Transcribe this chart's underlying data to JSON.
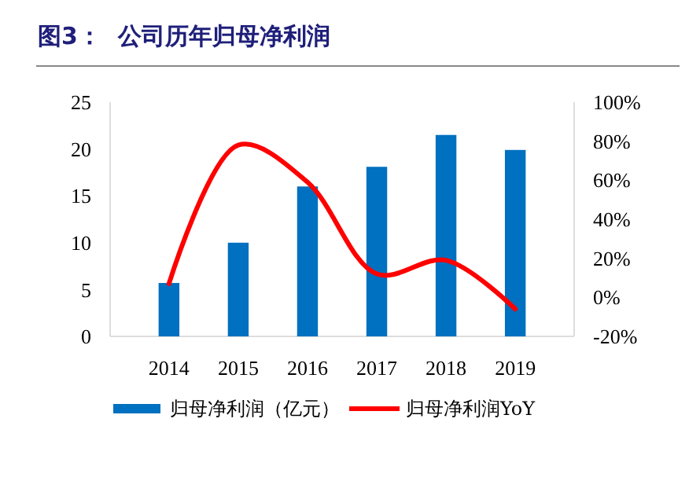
{
  "chart_data": {
    "type": "bar",
    "title": "图3：  公司历年归母净利润",
    "categories": [
      "2014",
      "2015",
      "2016",
      "2017",
      "2018",
      "2019"
    ],
    "series": [
      {
        "name": "归母净利润（亿元）",
        "color": "#0070c0",
        "values": [
          5.7,
          10.0,
          16.0,
          18.1,
          21.5,
          19.9
        ]
      },
      {
        "name": "归母净利润YoY",
        "type": "line",
        "axis": "y2",
        "color": "#ff0000",
        "values": [
          7,
          78,
          59,
          12,
          19,
          -6
        ]
      }
    ],
    "ylim": [
      0,
      25
    ],
    "yticks": [
      0,
      5,
      10,
      15,
      20,
      25
    ],
    "y2lim": [
      -20,
      100
    ],
    "y2ticks": [
      {
        "value": -20,
        "label": "-20%"
      },
      {
        "value": 0,
        "label": "0%"
      },
      {
        "value": 20,
        "label": "20%"
      },
      {
        "value": 40,
        "label": "40%"
      },
      {
        "value": 60,
        "label": "60%"
      },
      {
        "value": 80,
        "label": "80%"
      },
      {
        "value": 100,
        "label": "100%"
      }
    ],
    "legend": "bottom",
    "grid": false,
    "marker": "none",
    "line_style": "solid"
  }
}
